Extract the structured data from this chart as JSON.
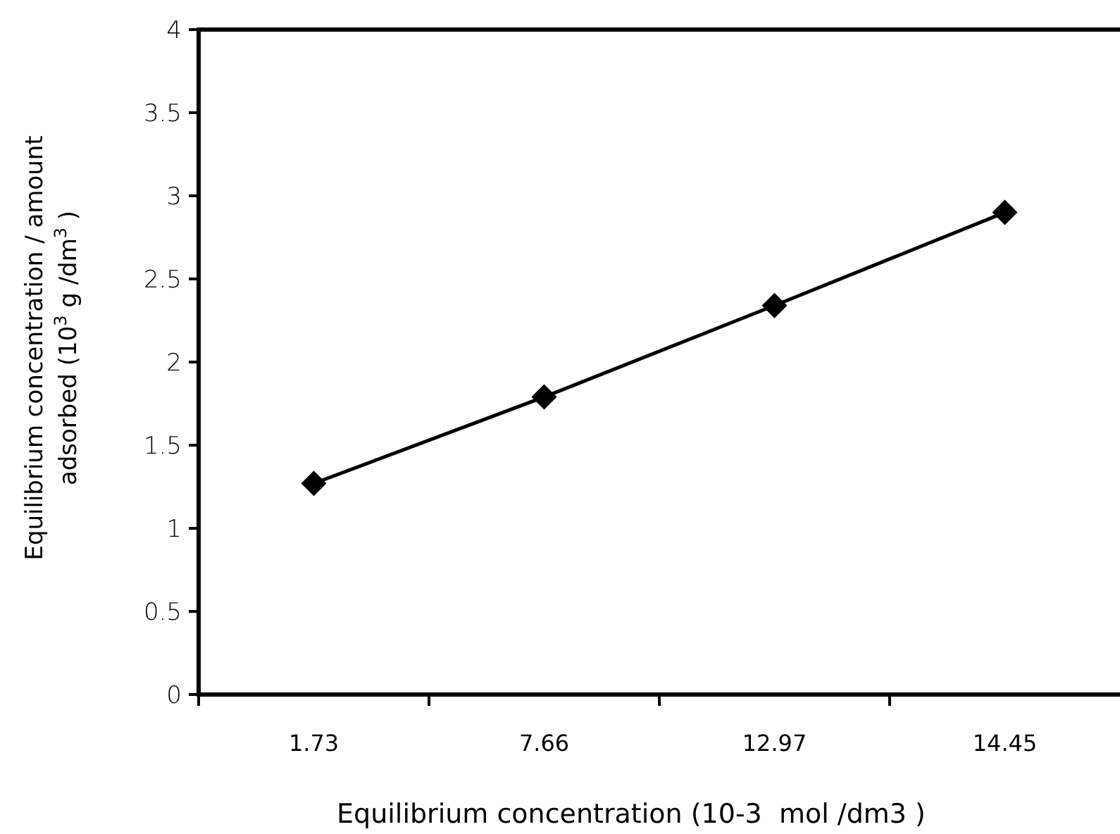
{
  "chart_data": {
    "type": "line",
    "xlabel": "Equilibrium concentration (10-3  mol /dm3 )",
    "ylabel": "Equilibrium concentration / amount adsorbed (10$^{3}$ g /dm$^{3}$ )",
    "categories": [
      "1.73",
      "7.66",
      "12.97",
      "14.45"
    ],
    "series": [
      {
        "color": "#000000",
        "values": [
          1.27,
          1.79,
          2.34,
          2.9
        ]
      }
    ],
    "ylim": [
      0,
      4
    ],
    "yticks": [
      0,
      0.5,
      1,
      1.5,
      2,
      2.5,
      3,
      3.5,
      4
    ],
    "marker": "diamond",
    "line_style": "solid",
    "grid": false
  }
}
